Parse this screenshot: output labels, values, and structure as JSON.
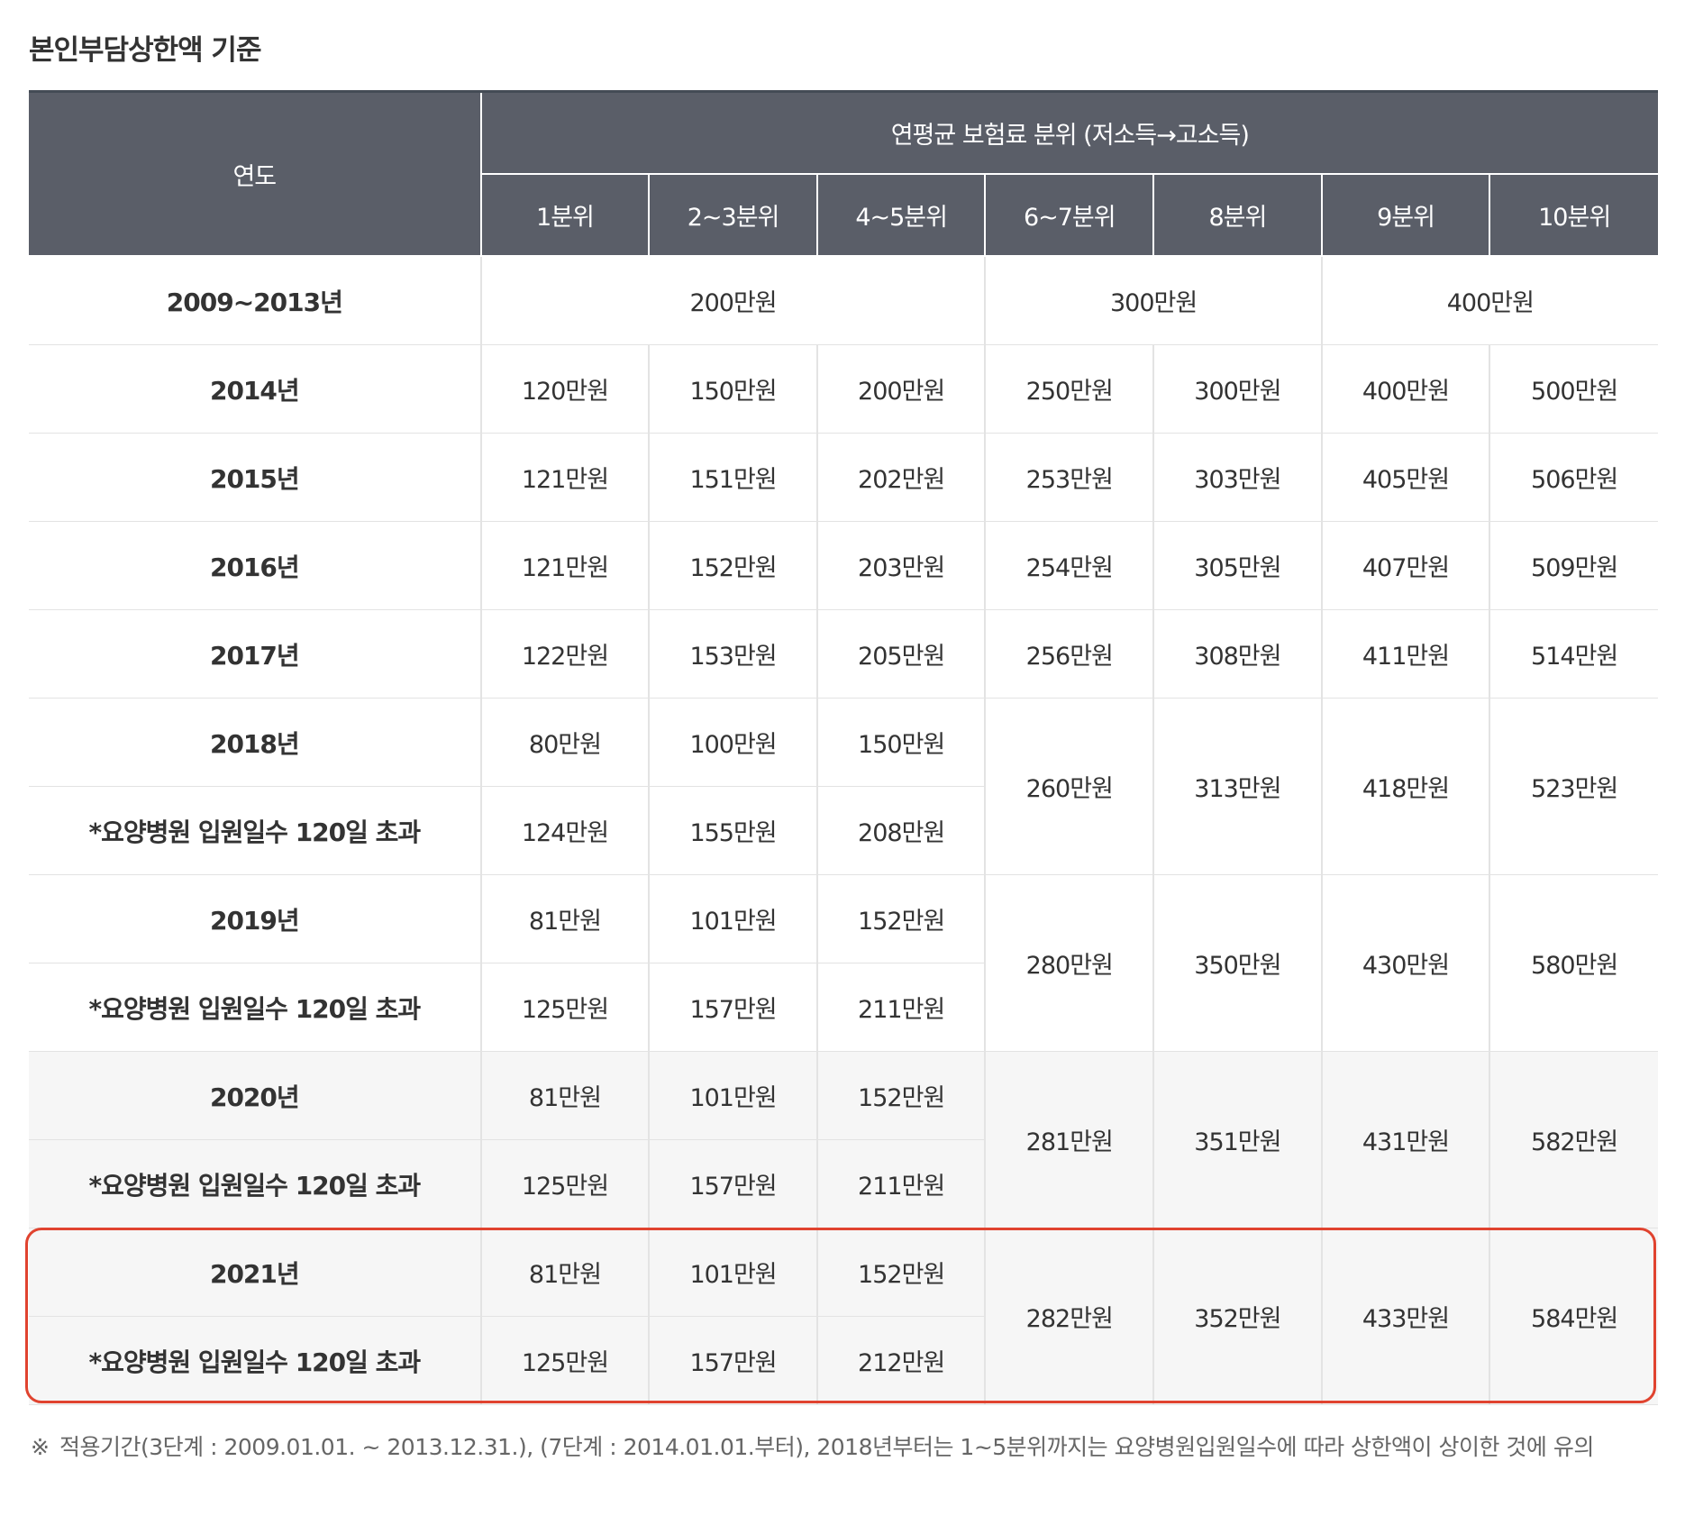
{
  "title": "본인부담상한액 기준",
  "header": {
    "year": "연도",
    "group": "연평균 보험료 분위 (저소득→고소득)",
    "quantiles": [
      "1분위",
      "2~3분위",
      "4~5분위",
      "6~7분위",
      "8분위",
      "9분위",
      "10분위"
    ]
  },
  "rows": {
    "r2009": {
      "year": "2009~2013년",
      "low": "200만원",
      "mid": "300만원",
      "high": "400만원"
    },
    "r2014": {
      "year": "2014년",
      "v": [
        "120만원",
        "150만원",
        "200만원",
        "250만원",
        "300만원",
        "400만원",
        "500만원"
      ]
    },
    "r2015": {
      "year": "2015년",
      "v": [
        "121만원",
        "151만원",
        "202만원",
        "253만원",
        "303만원",
        "405만원",
        "506만원"
      ]
    },
    "r2016": {
      "year": "2016년",
      "v": [
        "121만원",
        "152만원",
        "203만원",
        "254만원",
        "305만원",
        "407만원",
        "509만원"
      ]
    },
    "r2017": {
      "year": "2017년",
      "v": [
        "122만원",
        "153만원",
        "205만원",
        "256만원",
        "308만원",
        "411만원",
        "514만원"
      ]
    },
    "r2018": {
      "year": "2018년",
      "a": [
        "80만원",
        "100만원",
        "150만원"
      ],
      "sub": "*요양병원 입원일수 120일 초과",
      "b": [
        "124만원",
        "155만원",
        "208만원"
      ],
      "shared": [
        "260만원",
        "313만원",
        "418만원",
        "523만원"
      ]
    },
    "r2019": {
      "year": "2019년",
      "a": [
        "81만원",
        "101만원",
        "152만원"
      ],
      "sub": "*요양병원 입원일수 120일 초과",
      "b": [
        "125만원",
        "157만원",
        "211만원"
      ],
      "shared": [
        "280만원",
        "350만원",
        "430만원",
        "580만원"
      ]
    },
    "r2020": {
      "year": "2020년",
      "a": [
        "81만원",
        "101만원",
        "152만원"
      ],
      "sub": "*요양병원 입원일수 120일 초과",
      "b": [
        "125만원",
        "157만원",
        "211만원"
      ],
      "shared": [
        "281만원",
        "351만원",
        "431만원",
        "582만원"
      ]
    },
    "r2021": {
      "year": "2021년",
      "a": [
        "81만원",
        "101만원",
        "152만원"
      ],
      "sub": "*요양병원 입원일수 120일 초과",
      "b": [
        "125만원",
        "157만원",
        "212만원"
      ],
      "shared": [
        "282만원",
        "352만원",
        "433만원",
        "584만원"
      ]
    }
  },
  "footnote": {
    "mark": "※",
    "text": "적용기간(3단계 : 2009.01.01. ~ 2013.12.31.), (7단계 : 2014.01.01.부터), 2018년부터는 1~5분위까지는 요양병원입원일수에 따라 상한액이 상이한 것에 유의"
  },
  "highlight_color": "#e0432f"
}
